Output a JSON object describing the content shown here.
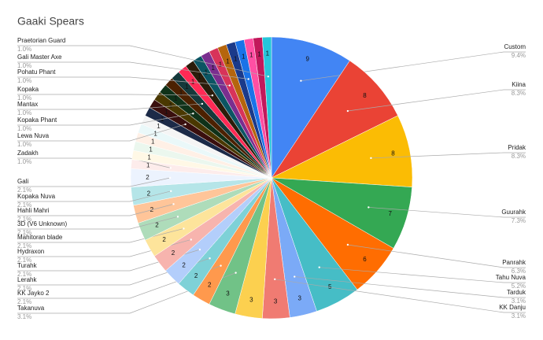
{
  "chart_data": {
    "type": "pie",
    "title": "Gaaki Spears",
    "categories": [
      "Custom",
      "Kiina",
      "Pridak",
      "Guurahk",
      "Panrahk",
      "Tahu Nuva",
      "Tarduk",
      "KK Danju",
      null,
      "Takanuva",
      "KK Jayko 2",
      "Lerahk",
      "Turahk",
      "Hydraxon",
      "Mahitoran blade",
      "3D (V6 Unknown)",
      "Hahli Mahri",
      "Kopaka Nuva",
      "Gali",
      "Zadakh",
      null,
      null,
      null,
      null,
      null,
      null,
      "Lewa Nuva",
      null,
      "Kopaka Phant",
      null,
      "Mantax",
      null,
      "Kopaka",
      null,
      null,
      "Pohatu Phant",
      null,
      null,
      "Gali Master Axe",
      null,
      null,
      "Praetorian Guard"
    ],
    "values": [
      9,
      8,
      8,
      7,
      6,
      5,
      3,
      3,
      3,
      3,
      2,
      2,
      2,
      2,
      2,
      2,
      2,
      2,
      2,
      1,
      1,
      1,
      1,
      1,
      1,
      1,
      1,
      1,
      1,
      1,
      1,
      1,
      1,
      1,
      1,
      1,
      1,
      1,
      1,
      1,
      1,
      1
    ],
    "value_labels": [
      "9.4%",
      "8.3%",
      "8.3%",
      "7.3%",
      "6.3%",
      "5.2%",
      "3.1%",
      "3.1%",
      null,
      "3.1%",
      "2.1%",
      "2.1%",
      "2.1%",
      "2.1%",
      "2.1%",
      "2.1%",
      "2.1%",
      "2.1%",
      "2.1%",
      "1.0%",
      null,
      null,
      null,
      null,
      null,
      null,
      "1.0%",
      null,
      "1.0%",
      null,
      "1.0%",
      null,
      "1.0%",
      null,
      null,
      "1.0%",
      null,
      null,
      "1.0%",
      null,
      null,
      "1.0%"
    ],
    "colors": [
      "#4285f4",
      "#ea4335",
      "#fbbc04",
      "#34a853",
      "#ff6d01",
      "#46bdc6",
      "#7baaf7",
      "#f07b72",
      "#fcd04f",
      "#71c287",
      "#ff994d",
      "#7ed1d7",
      "#b3cefb",
      "#f7b4ae",
      "#fde49b",
      "#aedcba",
      "#ffc599",
      "#b5e5e8",
      "#ecf3fe",
      "#fdeceb",
      "#fff8e6",
      "#ebf7ee",
      "#fff0e6",
      "#eaf8f9",
      "#f5f5f5",
      "#1c2a48",
      "#3a0f0e",
      "#4a3801",
      "#0f3219",
      "#4c2100",
      "#15393b",
      "#ff2a55",
      "#2b1c0a",
      "#0b5563",
      "#7a2e8f",
      "#d8335a",
      "#b5650d",
      "#1b3a8a",
      "#1a73e8",
      "#ff4fa3",
      "#c2185b",
      "#26c6da"
    ]
  }
}
